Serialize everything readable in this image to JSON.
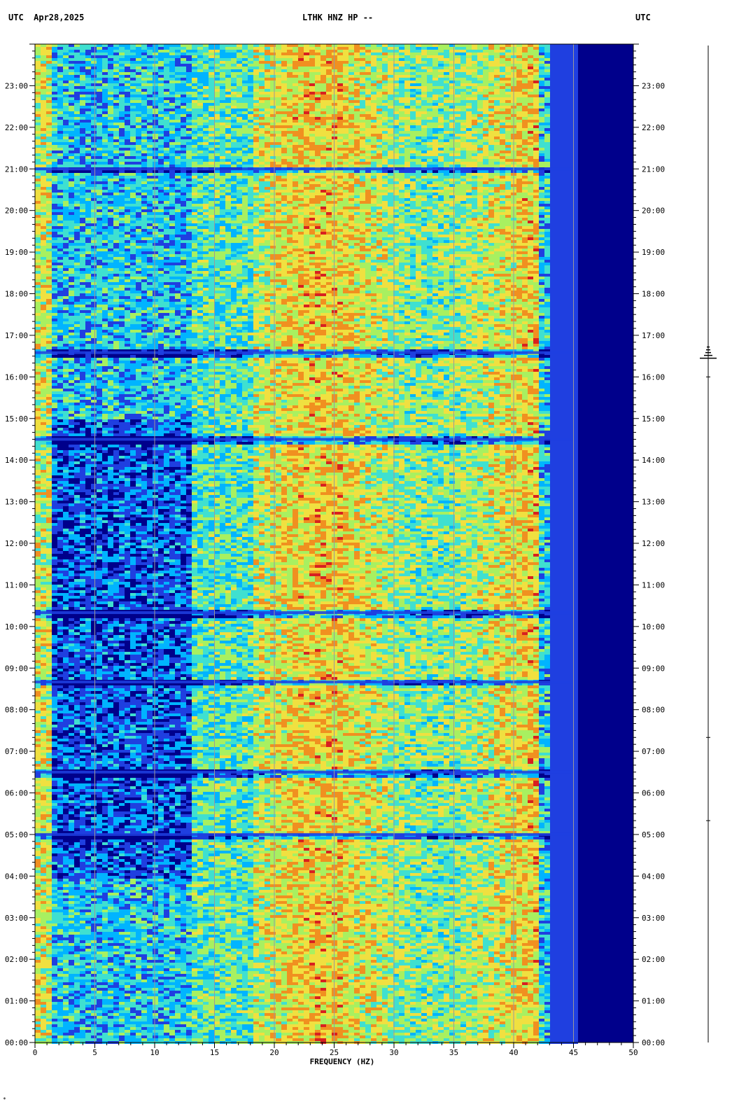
{
  "header": {
    "left": "UTC  Apr28,2025",
    "center": "LTHK HNZ HP --",
    "right": "UTC"
  },
  "corner_mark": "*",
  "chart_data": {
    "type": "heatmap",
    "title": "LTHK HNZ HP --",
    "date": "Apr28,2025",
    "xlabel": "FREQUENCY (HZ)",
    "ylabel": "UTC",
    "xlim": [
      0,
      50
    ],
    "ylim": [
      "00:00",
      "24:00"
    ],
    "x_ticks": [
      "0",
      "5",
      "10",
      "15",
      "20",
      "25",
      "30",
      "35",
      "40",
      "45",
      "50"
    ],
    "y_ticks_left": [
      "00:00",
      "01:00",
      "02:00",
      "03:00",
      "04:00",
      "05:00",
      "06:00",
      "07:00",
      "08:00",
      "09:00",
      "10:00",
      "11:00",
      "12:00",
      "13:00",
      "14:00",
      "15:00",
      "16:00",
      "17:00",
      "18:00",
      "19:00",
      "20:00",
      "21:00",
      "22:00",
      "23:00"
    ],
    "y_ticks_right": [
      "00:00",
      "01:00",
      "02:00",
      "03:00",
      "04:00",
      "05:00",
      "06:00",
      "07:00",
      "08:00",
      "09:00",
      "10:00",
      "11:00",
      "12:00",
      "13:00",
      "14:00",
      "15:00",
      "16:00",
      "17:00",
      "18:00",
      "19:00",
      "20:00",
      "21:00",
      "22:00",
      "23:00"
    ],
    "grid": true,
    "grid_x": [
      5,
      10,
      15,
      20,
      25,
      30,
      35,
      40,
      45
    ],
    "colormap": [
      "#00008b",
      "#1f3fe0",
      "#00b4ff",
      "#3fe0d0",
      "#a8f060",
      "#f0e040",
      "#f09020",
      "#d82020"
    ],
    "energy_cutoff_hz": 45,
    "quiet_hours": [
      "05:00",
      "06:30",
      "08:40",
      "10:20",
      "14:30",
      "16:35",
      "21:00"
    ],
    "event_hour": "16:35"
  }
}
